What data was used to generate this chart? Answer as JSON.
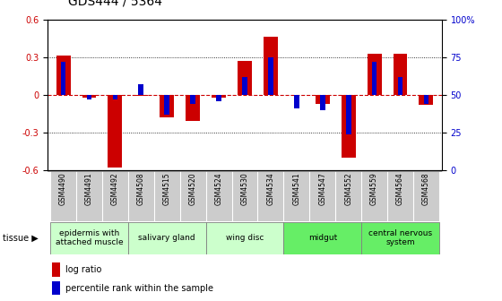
{
  "title": "GDS444 / 5364",
  "samples": [
    "GSM4490",
    "GSM4491",
    "GSM4492",
    "GSM4508",
    "GSM4515",
    "GSM4520",
    "GSM4524",
    "GSM4530",
    "GSM4534",
    "GSM4541",
    "GSM4547",
    "GSM4552",
    "GSM4559",
    "GSM4564",
    "GSM4568"
  ],
  "log_ratio": [
    0.31,
    -0.02,
    -0.58,
    -0.01,
    -0.18,
    -0.21,
    -0.02,
    0.27,
    0.46,
    0.0,
    -0.07,
    -0.5,
    0.33,
    0.33,
    -0.08
  ],
  "percentile": [
    72,
    47,
    47,
    57,
    37,
    44,
    46,
    62,
    75,
    41,
    40,
    24,
    72,
    62,
    44
  ],
  "tissue_groups": [
    {
      "label": "epidermis with\nattached muscle",
      "indices": [
        0,
        1,
        2
      ],
      "color": "#ccffcc"
    },
    {
      "label": "salivary gland",
      "indices": [
        3,
        4,
        5
      ],
      "color": "#ccffcc"
    },
    {
      "label": "wing disc",
      "indices": [
        6,
        7,
        8
      ],
      "color": "#ccffcc"
    },
    {
      "label": "midgut",
      "indices": [
        9,
        10,
        11
      ],
      "color": "#66ee66"
    },
    {
      "label": "central nervous\nsystem",
      "indices": [
        12,
        13,
        14
      ],
      "color": "#66ee66"
    }
  ],
  "ylim": [
    -0.6,
    0.6
  ],
  "red_color": "#cc0000",
  "blue_color": "#0000cc",
  "red_bar_width": 0.55,
  "blue_bar_width": 0.2,
  "title_fontsize": 10,
  "tick_fontsize": 7,
  "sample_fontsize": 5.5,
  "tissue_fontsize": 6.5,
  "legend_fontsize": 7,
  "sample_bg": "#cccccc",
  "grid_color": "black",
  "zero_line_color": "#cc0000"
}
